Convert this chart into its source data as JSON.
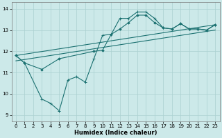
{
  "background_color": "#cce9e9",
  "grid_color": "#aad0d0",
  "line_color": "#1a7070",
  "xlabel": "Humidex (Indice chaleur)",
  "xlim": [
    -0.5,
    23.5
  ],
  "ylim": [
    8.7,
    14.3
  ],
  "yticks": [
    9,
    10,
    11,
    12,
    13,
    14
  ],
  "xticks": [
    0,
    1,
    2,
    3,
    4,
    5,
    6,
    7,
    8,
    9,
    10,
    11,
    12,
    13,
    14,
    15,
    16,
    17,
    18,
    19,
    20,
    21,
    22,
    23
  ],
  "line1_x": [
    0,
    1,
    3,
    4,
    5,
    6,
    7,
    8,
    9,
    10,
    11,
    12,
    13,
    14,
    15,
    16,
    17,
    18,
    19,
    20,
    21,
    22,
    23
  ],
  "line1_y": [
    11.8,
    11.45,
    9.75,
    9.55,
    9.2,
    10.65,
    10.8,
    10.55,
    11.65,
    12.75,
    12.8,
    13.55,
    13.55,
    13.85,
    13.85,
    13.55,
    13.1,
    13.05,
    13.3,
    13.05,
    13.05,
    13.0,
    13.25
  ],
  "line2_x": [
    0,
    1,
    3,
    5,
    9,
    10,
    11,
    12,
    13,
    14,
    15,
    16,
    17,
    18,
    19,
    20,
    21,
    22,
    23
  ],
  "line2_y": [
    11.8,
    11.45,
    11.15,
    11.65,
    12.0,
    12.05,
    12.8,
    13.05,
    13.35,
    13.7,
    13.7,
    13.35,
    13.1,
    13.05,
    13.3,
    13.05,
    13.05,
    13.0,
    13.25
  ],
  "trend1_x": [
    0,
    23
  ],
  "trend1_y": [
    11.8,
    13.25
  ],
  "trend2_x": [
    0,
    23
  ],
  "trend2_y": [
    11.55,
    13.0
  ]
}
